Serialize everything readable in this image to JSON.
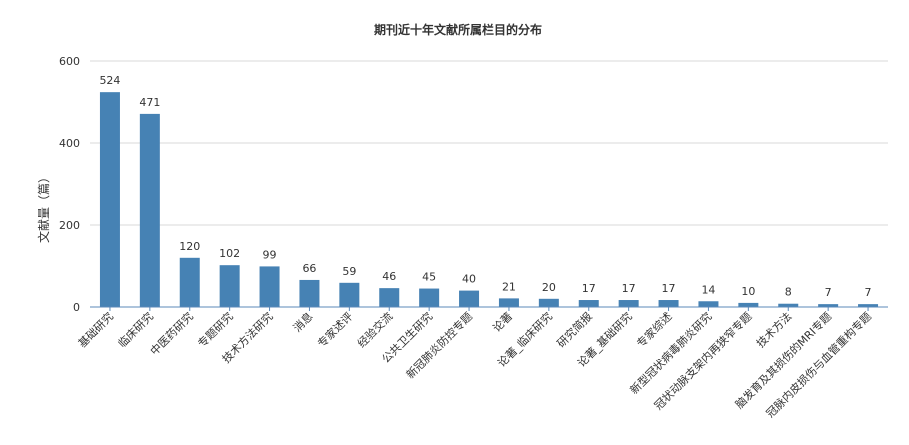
{
  "chart_data": {
    "type": "bar",
    "title": "期刊近十年文献所属栏目的分布",
    "xlabel": "",
    "ylabel": "文献量（篇）",
    "ylim": [
      0,
      600
    ],
    "yticks": [
      0,
      200,
      400,
      600
    ],
    "grid": true,
    "legend": "none",
    "bar_color": "#4682b4",
    "categories": [
      "基础研究",
      "临床研究",
      "中医药研究",
      "专题研究",
      "技术方法研究",
      "消息",
      "专家述评",
      "经验交流",
      "公共卫生研究",
      "新冠肺炎防控专题",
      "论著",
      "论著_临床研究",
      "研究简报",
      "论著_基础研究",
      "专家综述",
      "新型冠状病毒肺炎研究",
      "冠状动脉支架内再狭窄专题",
      "技术方法",
      "脑发育及其损伤的MRI专题",
      "冠脉内皮损伤与血管重构专题"
    ],
    "values": [
      524,
      471,
      120,
      102,
      99,
      66,
      59,
      46,
      45,
      40,
      21,
      20,
      17,
      17,
      17,
      14,
      10,
      8,
      7,
      7
    ]
  }
}
